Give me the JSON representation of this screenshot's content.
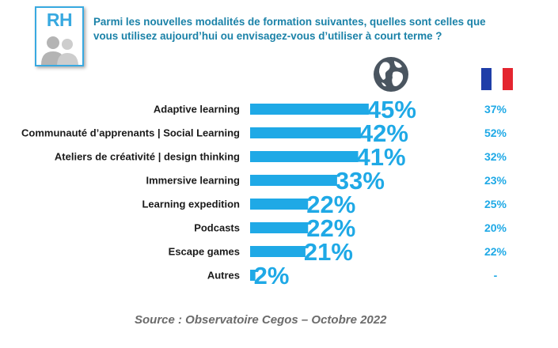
{
  "logo": {
    "text": "RH"
  },
  "question": "Parmi les nouvelles modalités de formation suivantes, quelles sont celles que vous utilisez aujourd’hui ou envisagez-vous d’utiliser à court terme ?",
  "icons": {
    "world": "globe-icon",
    "france": "french-flag-icon"
  },
  "colors": {
    "bar": "#1fa9e6",
    "question_text": "#1b82a8",
    "logo_border": "#38a9e0",
    "flag_blue": "#1f3ea8",
    "flag_white": "#ffffff",
    "flag_red": "#e4252f",
    "globe": "#4a5560"
  },
  "chart_data": {
    "type": "bar",
    "orientation": "horizontal",
    "categories": [
      "Adaptive learning",
      "Communauté d’apprenants | Social Learning",
      "Ateliers de créativité | design thinking",
      "Immersive learning",
      "Learning expedition",
      "Podcasts",
      "Escape games",
      "Autres"
    ],
    "values": [
      45,
      42,
      41,
      33,
      22,
      22,
      21,
      2
    ],
    "value_labels": [
      "45%",
      "42%",
      "41%",
      "33%",
      "22%",
      "22%",
      "21%",
      "2%"
    ],
    "france_labels": [
      "37%",
      "52%",
      "32%",
      "23%",
      "25%",
      "20%",
      "22%",
      "-"
    ],
    "grid": false
  },
  "source": "Source : Observatoire Cegos – Octobre 2022"
}
